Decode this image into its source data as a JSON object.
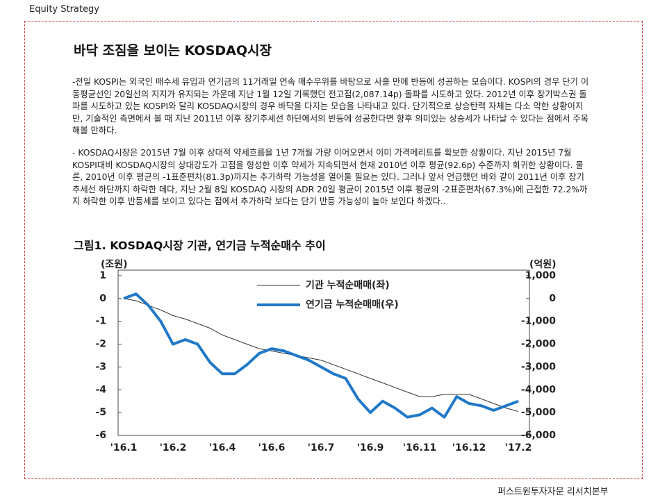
{
  "header": "Equity Strategy",
  "title": "바닥 조짐을 보이는 KOSDAQ시장",
  "paragraphs": [
    "-전일 KOSPI는 외국인 매수세 유입과 연기금의 11거래일 연속 매수우위를 바탕으로 사흘 만에 반등에 성공하는 모습이다. KOSPI의 경우 단기 이동평균선인 20일선의 지지가 유지되는 가운데 지난 1월 12일 기록했던 전고점(2,087.14p) 돌파를 시도하고 있다. 2012년 이후 장기박스권 돌파를 시도하고 있는 KOSPI와 달리 KOSDAQ시장의 경우 바닥을 다지는 모습을 나타내고 있다. 단기적으로 상승탄력 자체는 다소 약한 상황이지만, 기술적인 측면에서 볼 때 지난 2011년 이후 장기추세선 하단에서의 반등에 성공한다면 향후 의미있는 상승세가 나타날 수 있다는 점에서 주목해볼 만하다.",
    "- KOSDAQ시장은 2015년 7월 이후 상대적 약세흐름을 1년 7개월 가량 이어오면서 이미 가격메리트를 확보한 상황이다. 지난 2015년 7월 KOSPI대비 KOSDAQ시장의 상대강도가 고점을 형성한 이후 약세가 지속되면서 현재 2010년 이후 평균(92.6p) 수준까지 회귀한 상황이다. 물론, 2010년 이후 평균의 -1표준편차(81.3p)까지는 추가하락 가능성을 열어둘 필요는 있다. 그러나 앞서 언급했던 바와 같이 2011년 이후 장기추세선 하단까지 하락한 데다, 지난 2월 8일 KOSDAQ 시장의 ADR 20일 평균이 2015년 이후 평균의 -2표준편차(67.3%)에 근접한 72.2%까지 하락한 이후 반등세를 보이고 있다는 점에서 추가하락 보다는 단기 반등 가능성이 높아 보인다 하겠다.."
  ],
  "figure_title": "그림1. KOSDAQ시장 기관, 연기금 누적순매수 추이",
  "chart_data": {
    "type": "line",
    "y_label": "(조원)",
    "y2_label": "(억원)",
    "categories": [
      "'16.1",
      null,
      null,
      null,
      "'16.2",
      null,
      null,
      null,
      "'16.4",
      null,
      null,
      null,
      "'16.6",
      null,
      null,
      null,
      "'16.7",
      null,
      null,
      null,
      "'16.9",
      null,
      null,
      null,
      "'16.11",
      null,
      null,
      null,
      "'16.12",
      null,
      null,
      null,
      "'17.2"
    ],
    "series": [
      {
        "name": "기관 누적순매매(좌)",
        "color": "#333333",
        "axis": "y",
        "values": [
          0,
          -0.1,
          -0.3,
          -0.5,
          -0.75,
          -0.9,
          -1.1,
          -1.3,
          -1.6,
          -1.8,
          -2.0,
          -2.2,
          -2.3,
          -2.4,
          -2.5,
          -2.6,
          -2.7,
          -2.9,
          -3.1,
          -3.3,
          -3.5,
          -3.7,
          -3.9,
          -4.1,
          -4.3,
          -4.3,
          -4.2,
          -4.2,
          -4.2,
          -4.4,
          -4.6,
          -4.8,
          -4.95
        ]
      },
      {
        "name": "연기금 누적순매매(우)",
        "color": "#1f78c8",
        "axis": "y2",
        "values": [
          0,
          200,
          -300,
          -1000,
          -2000,
          -1800,
          -2000,
          -2800,
          -3300,
          -3300,
          -2900,
          -2400,
          -2200,
          -2300,
          -2500,
          -2700,
          -3000,
          -3300,
          -3500,
          -4400,
          -5000,
          -4500,
          -4800,
          -5200,
          -5100,
          -4800,
          -5200,
          -4300,
          -4600,
          -4700,
          -4900,
          -4700,
          -4500
        ]
      }
    ],
    "ylim": [
      -6,
      1
    ],
    "yticks": [
      1,
      0,
      -1,
      -2,
      -3,
      -4,
      -5,
      -6
    ],
    "y2lim": [
      -6000,
      1000
    ],
    "y2ticks": [
      {
        "value": 1000,
        "label": "1,000"
      },
      0,
      {
        "value": -1000,
        "label": "-1,000"
      },
      {
        "value": -2000,
        "label": "-2,000"
      },
      {
        "value": -3000,
        "label": "-3,000"
      },
      {
        "value": -4000,
        "label": "-4,000"
      },
      {
        "value": -5000,
        "label": "-5,000"
      },
      {
        "value": -6000,
        "label": "-6,000"
      }
    ]
  },
  "footer": "퍼스트원투자자문 리서치본부"
}
